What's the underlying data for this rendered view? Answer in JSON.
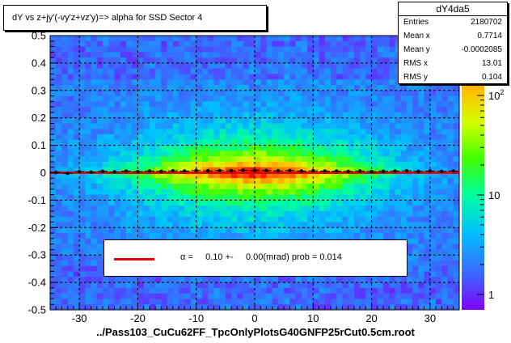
{
  "chart_data": {
    "type": "heatmap",
    "title": "dY vs  z+jy'(-vy'z+vz'y)=> alpha for SSD Sector 4",
    "xlabel": "../Pass103_CuCu62FF_TpcOnlyPlotsG40GNFP25rCut0.5cm.root",
    "ylabel": "",
    "xlim": [
      -35,
      35
    ],
    "ylim": [
      -0.5,
      0.5
    ],
    "x_ticks": [
      "-30",
      "-20",
      "-10",
      "0",
      "10",
      "20",
      "30"
    ],
    "y_ticks": [
      "-0.5",
      "-0.4",
      "-0.3",
      "-0.2",
      "-0.1",
      "0",
      "0.1",
      "0.2",
      "0.3",
      "0.4",
      "0.5"
    ],
    "x_tick_values": [
      -30,
      -20,
      -10,
      0,
      10,
      20,
      30
    ],
    "y_tick_values": [
      -0.5,
      -0.4,
      -0.3,
      -0.2,
      -0.1,
      0,
      0.1,
      0.2,
      0.3,
      0.4,
      0.5
    ],
    "grid": true,
    "colorbar": {
      "scale": "log",
      "range": [
        0.7,
        400
      ],
      "ticks": [
        {
          "label": "1",
          "value": 1
        },
        {
          "label": "10",
          "value": 10
        },
        {
          "label": "10",
          "sup": "2",
          "value": 100
        }
      ]
    },
    "stats": {
      "name": "dY4da5",
      "rows": [
        {
          "k": "Entries",
          "v": "2180702"
        },
        {
          "k": "Mean x",
          "v": "0.7714"
        },
        {
          "k": "Mean y",
          "v": "-0.0002085"
        },
        {
          "k": "RMS x",
          "v": "13.01"
        },
        {
          "k": "RMS y",
          "v": "0.104"
        }
      ]
    },
    "legend": {
      "symbol": "α",
      "text": "=     0.10 +-     0.00(mrad) prob = 0.014",
      "color": "#e00000"
    },
    "fit_line": {
      "x": [
        -35,
        35
      ],
      "y": [
        0.0,
        0.0
      ],
      "color": "#e00000"
    },
    "profile_points": {
      "x": [
        -34,
        -32,
        -30,
        -28,
        -26,
        -24,
        -22,
        -20,
        -18,
        -16,
        -14,
        -12,
        -10,
        -8,
        -6,
        -4,
        -2,
        0,
        2,
        4,
        6,
        8,
        10,
        12,
        14,
        16,
        18,
        20,
        22,
        24,
        26,
        28,
        30,
        32,
        34
      ],
      "y": [
        0.001,
        -0.002,
        0.004,
        0.002,
        0.005,
        0.003,
        0.006,
        0.004,
        0.006,
        0.005,
        0.007,
        0.006,
        0.008,
        0.007,
        0.008,
        0.007,
        0.009,
        0.008,
        0.008,
        0.007,
        0.008,
        0.006,
        0.007,
        0.006,
        0.006,
        0.005,
        0.006,
        0.004,
        0.005,
        0.006,
        0.007,
        0.005,
        0.006,
        0.005,
        0.006
      ]
    }
  }
}
